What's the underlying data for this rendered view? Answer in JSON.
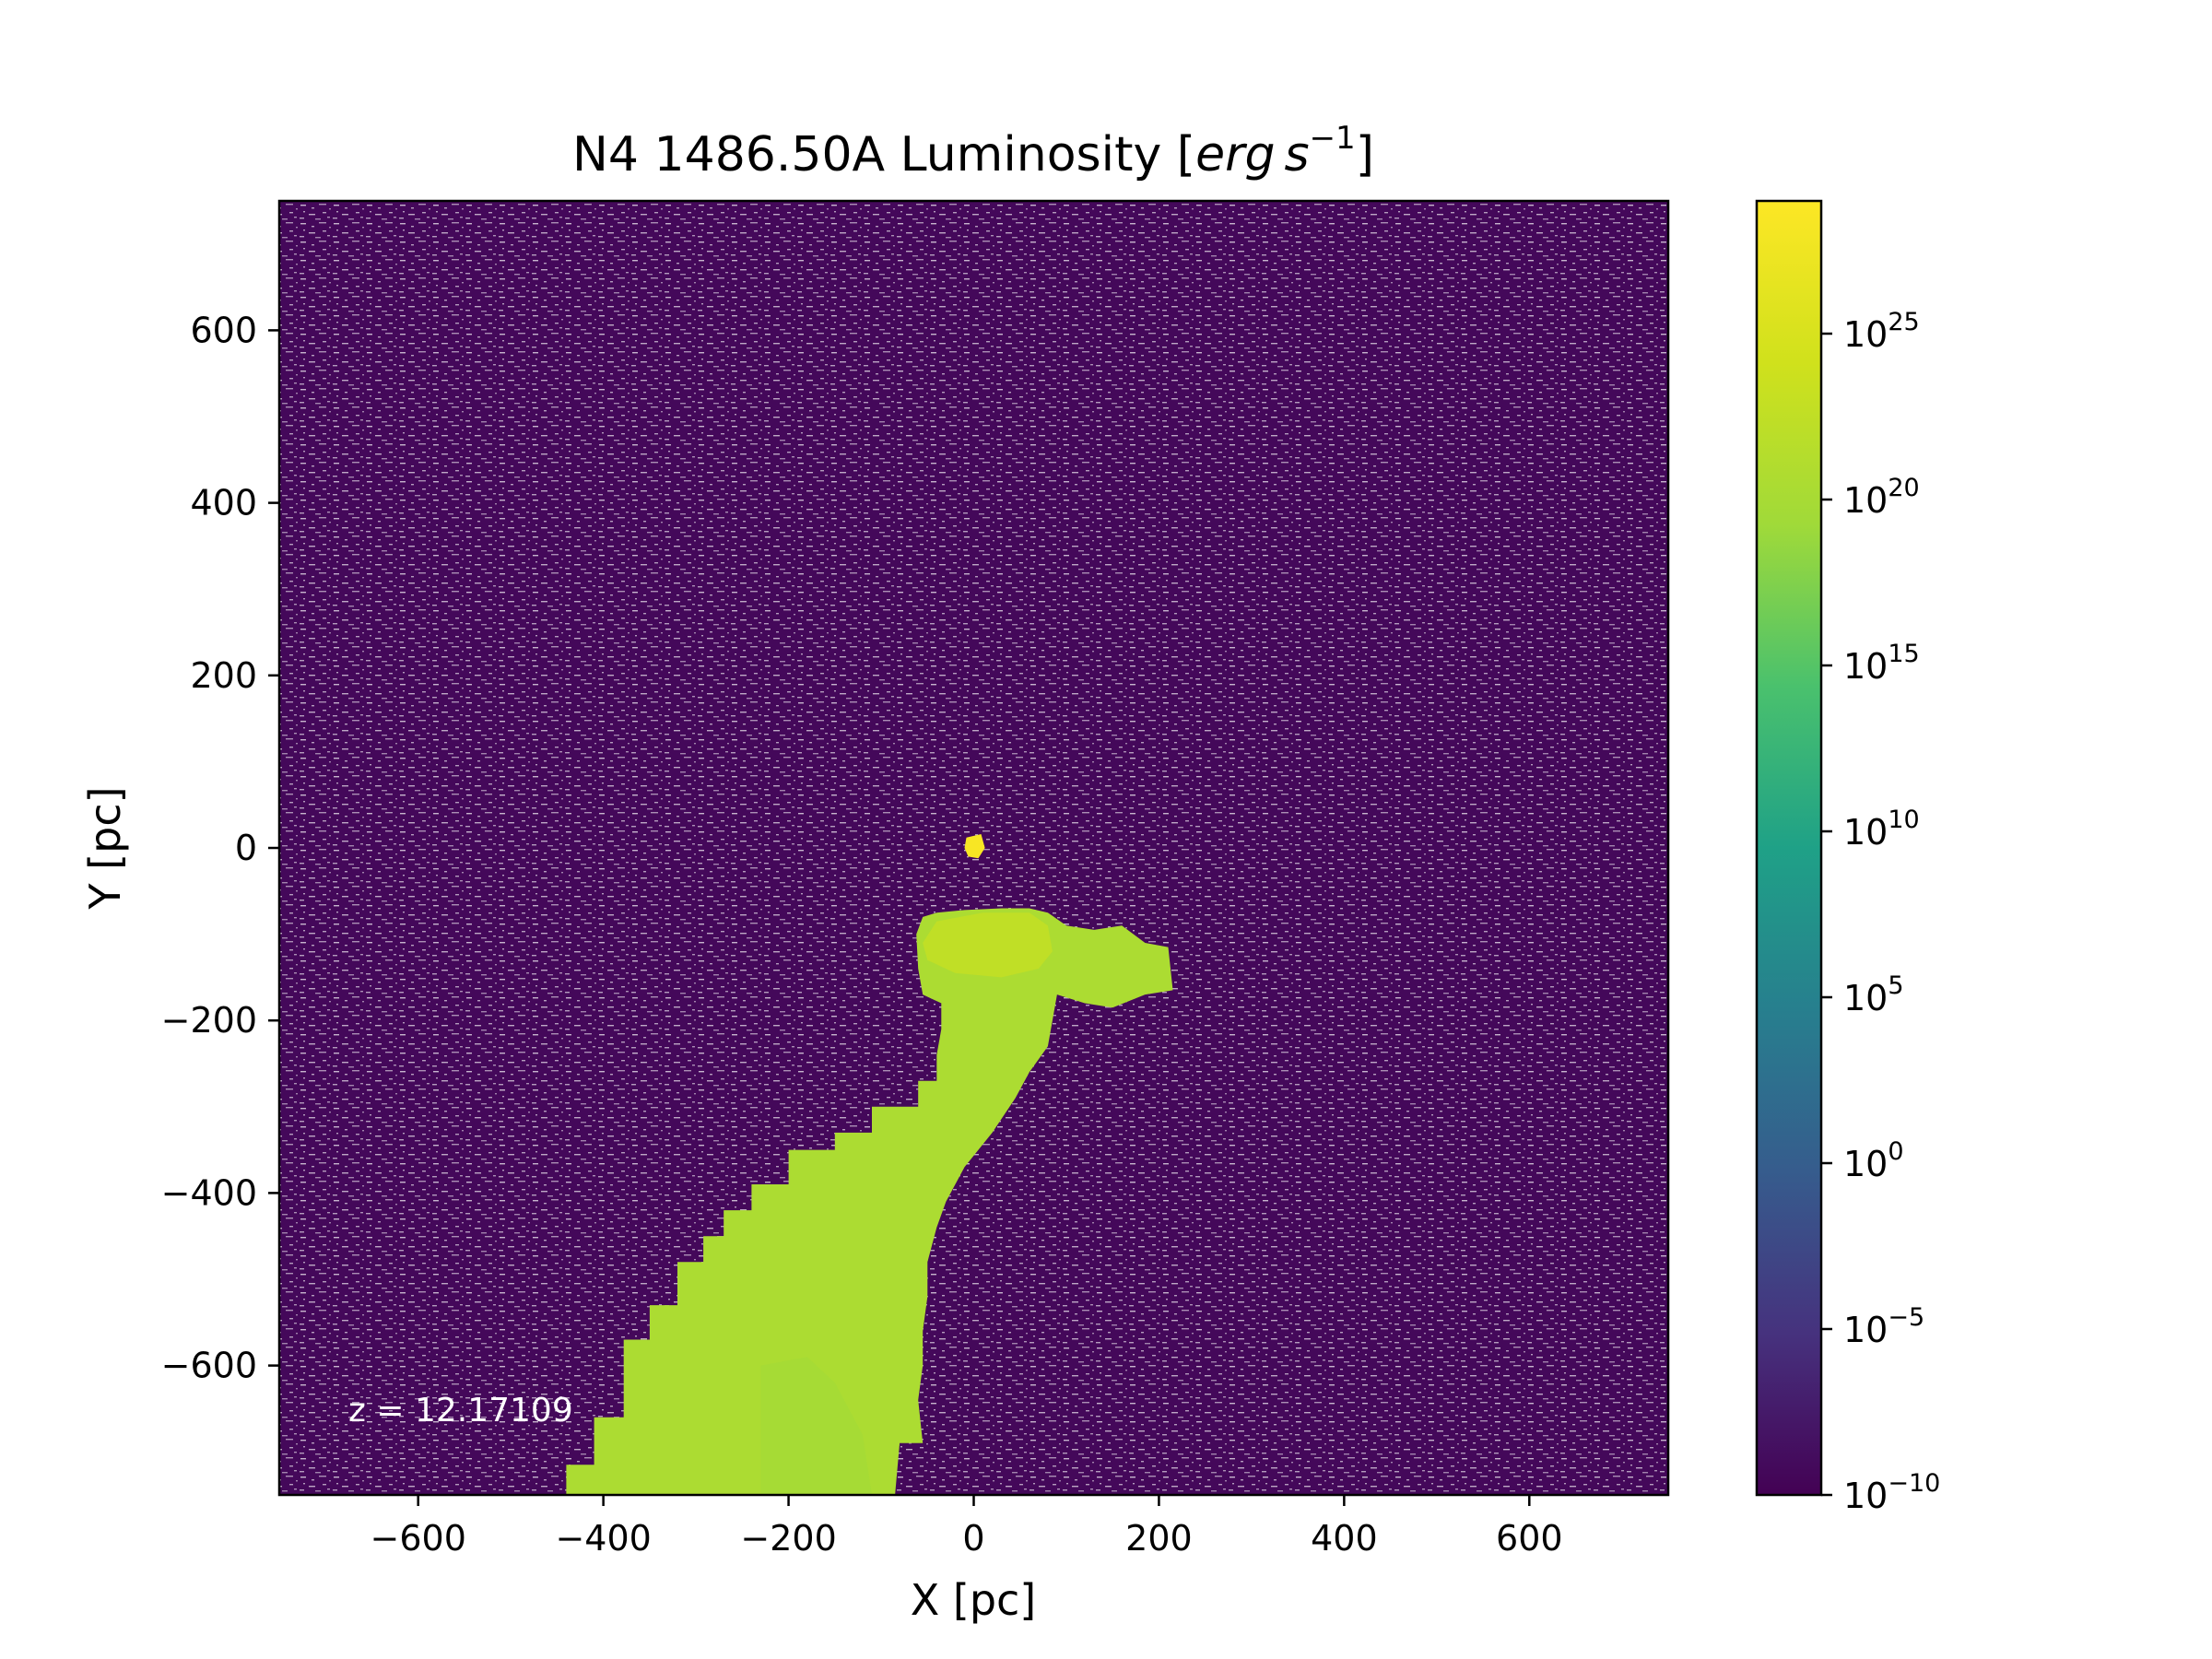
{
  "chart_data": {
    "type": "heatmap",
    "title": "N4 1486.50A Luminosity [erg s⁻¹]",
    "title_parts": {
      "prefix": "N4 1486.50A Luminosity [",
      "erg": "erg",
      "s": "s",
      "exp": "−1",
      "suffix": "]"
    },
    "xlabel": "X [pc]",
    "ylabel": "Y [pc]",
    "xlim": [
      -750,
      750
    ],
    "ylim": [
      -750,
      750
    ],
    "xticks": [
      -600,
      -400,
      -200,
      0,
      200,
      400,
      600
    ],
    "yticks": [
      -600,
      -400,
      -200,
      0,
      200,
      400,
      600
    ],
    "xtick_labels": [
      "−600",
      "−400",
      "−200",
      "0",
      "200",
      "400",
      "600"
    ],
    "ytick_labels": [
      "−600",
      "−400",
      "−200",
      "0",
      "200",
      "400",
      "600"
    ],
    "annotation": "z = 12.17109",
    "colorbar": {
      "scale": "log",
      "colormap": "viridis",
      "range_exp": [
        -10,
        29
      ],
      "ticks_exp": [
        -10,
        -5,
        0,
        5,
        10,
        15,
        20,
        25
      ],
      "tick_base": "10",
      "tick_exp_labels": [
        "−10",
        "−5",
        "0",
        "5",
        "10",
        "15",
        "20",
        "25"
      ]
    },
    "background": {
      "description_color": "#44085a",
      "noise_color": "#ffffff",
      "log_value": -10
    },
    "emission_regions": [
      {
        "name": "core",
        "log_value": 28.5,
        "points": [
          [
            -8,
            12
          ],
          [
            8,
            16
          ],
          [
            12,
            0
          ],
          [
            5,
            -12
          ],
          [
            -6,
            -10
          ],
          [
            -10,
            0
          ]
        ]
      },
      {
        "name": "plume",
        "log_value": 20.5,
        "points": [
          [
            -440,
            -750
          ],
          [
            -440,
            -715
          ],
          [
            -410,
            -715
          ],
          [
            -410,
            -660
          ],
          [
            -378,
            -660
          ],
          [
            -378,
            -570
          ],
          [
            -350,
            -570
          ],
          [
            -350,
            -530
          ],
          [
            -320,
            -530
          ],
          [
            -320,
            -480
          ],
          [
            -292,
            -480
          ],
          [
            -292,
            -450
          ],
          [
            -270,
            -450
          ],
          [
            -270,
            -420
          ],
          [
            -240,
            -420
          ],
          [
            -240,
            -390
          ],
          [
            -200,
            -390
          ],
          [
            -200,
            -350
          ],
          [
            -150,
            -350
          ],
          [
            -150,
            -330
          ],
          [
            -110,
            -330
          ],
          [
            -110,
            -300
          ],
          [
            -60,
            -300
          ],
          [
            -60,
            -270
          ],
          [
            -40,
            -270
          ],
          [
            -40,
            -240
          ],
          [
            -35,
            -210
          ],
          [
            -35,
            -180
          ],
          [
            -55,
            -170
          ],
          [
            -60,
            -140
          ],
          [
            -62,
            -100
          ],
          [
            -55,
            -80
          ],
          [
            -40,
            -75
          ],
          [
            -10,
            -72
          ],
          [
            30,
            -70
          ],
          [
            60,
            -70
          ],
          [
            80,
            -75
          ],
          [
            100,
            -90
          ],
          [
            130,
            -95
          ],
          [
            160,
            -90
          ],
          [
            185,
            -110
          ],
          [
            210,
            -115
          ],
          [
            215,
            -165
          ],
          [
            185,
            -170
          ],
          [
            150,
            -185
          ],
          [
            120,
            -180
          ],
          [
            90,
            -170
          ],
          [
            85,
            -200
          ],
          [
            80,
            -230
          ],
          [
            60,
            -260
          ],
          [
            45,
            -290
          ],
          [
            20,
            -330
          ],
          [
            -10,
            -370
          ],
          [
            -30,
            -410
          ],
          [
            -40,
            -440
          ],
          [
            -50,
            -480
          ],
          [
            -50,
            -520
          ],
          [
            -55,
            -560
          ],
          [
            -55,
            -600
          ],
          [
            -60,
            -640
          ],
          [
            -55,
            -690
          ],
          [
            -80,
            -690
          ],
          [
            -85,
            -750
          ]
        ]
      },
      {
        "name": "head-highlight",
        "log_value": 22.5,
        "points": [
          [
            -55,
            -110
          ],
          [
            -40,
            -85
          ],
          [
            10,
            -75
          ],
          [
            60,
            -75
          ],
          [
            80,
            -90
          ],
          [
            85,
            -120
          ],
          [
            70,
            -140
          ],
          [
            30,
            -150
          ],
          [
            -20,
            -145
          ],
          [
            -50,
            -130
          ]
        ]
      },
      {
        "name": "tail-tint",
        "log_value": 19.5,
        "points": [
          [
            -230,
            -750
          ],
          [
            -230,
            -600
          ],
          [
            -180,
            -590
          ],
          [
            -150,
            -620
          ],
          [
            -120,
            -680
          ],
          [
            -110,
            -750
          ]
        ]
      }
    ]
  }
}
